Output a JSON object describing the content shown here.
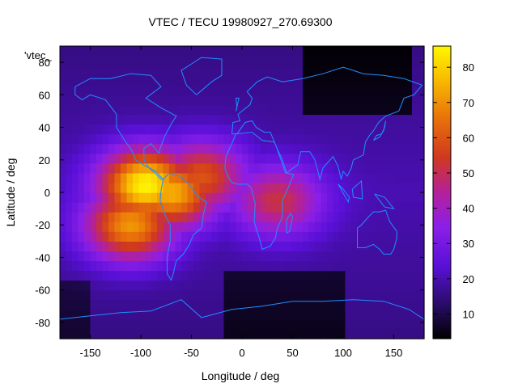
{
  "chart_data": {
    "type": "heatmap",
    "title": "VTEC / TECU 19980927_270.69300",
    "xlabel": "Longitude / deg",
    "ylabel": "Latitude / deg",
    "xlim": [
      -180,
      180
    ],
    "ylim": [
      -90,
      90
    ],
    "x_ticks": [
      "-150",
      "-100",
      "-50",
      "0",
      "50",
      "100",
      "150"
    ],
    "y_ticks": [
      "-80",
      "-60",
      "-40",
      "-20",
      "0",
      "20",
      "40",
      "60",
      "80"
    ],
    "colorbar": {
      "range": [
        3,
        86
      ],
      "ticks": [
        "10",
        "20",
        "30",
        "40",
        "50",
        "60",
        "70",
        "80"
      ],
      "palette": "black-blue-purple-red-yellow"
    },
    "legend_entries": [
      "'vtec_"
    ],
    "coastline_color": "#1e90ff",
    "features": [
      {
        "lon": -95,
        "lat": 5,
        "peak": 86
      },
      {
        "lon": -70,
        "lat": 0,
        "peak": 75
      },
      {
        "lon": -110,
        "lat": -20,
        "peak": 72
      },
      {
        "lon": -40,
        "lat": 10,
        "peak": 60
      },
      {
        "lon": 35,
        "lat": -5,
        "peak": 52
      }
    ]
  }
}
